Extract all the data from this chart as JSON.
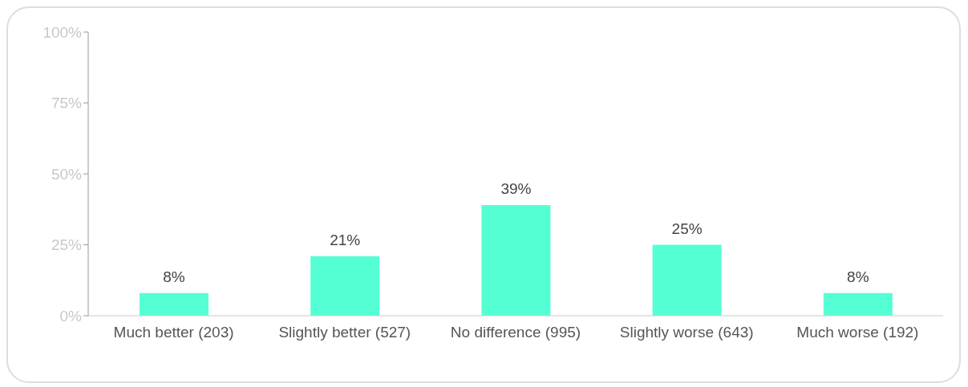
{
  "chart_data": {
    "type": "bar",
    "categories": [
      "Much better (203)",
      "Slightly better (527)",
      "No difference (995)",
      "Slightly worse (643)",
      "Much worse (192)"
    ],
    "values": [
      8,
      21,
      39,
      25,
      8
    ],
    "value_labels": [
      "8%",
      "21%",
      "39%",
      "25%",
      "8%"
    ],
    "color": "#55ffd4",
    "ylim": [
      0,
      100
    ],
    "yticks": [
      {
        "value": 0,
        "label": "0%"
      },
      {
        "value": 25,
        "label": "25%"
      },
      {
        "value": 50,
        "label": "50%"
      },
      {
        "value": 75,
        "label": "75%"
      },
      {
        "value": 100,
        "label": "100%"
      }
    ],
    "grid": false,
    "legend": false
  }
}
